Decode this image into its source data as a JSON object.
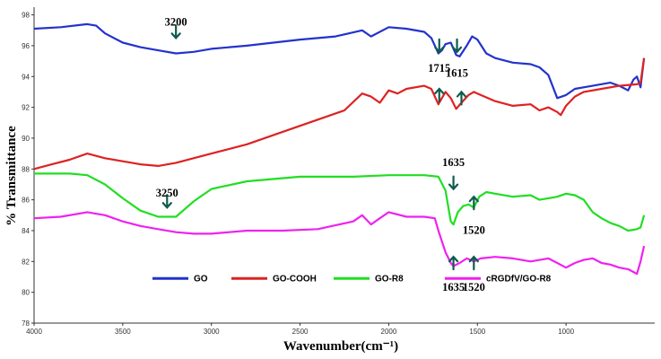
{
  "chart_data": {
    "type": "line",
    "title": "",
    "xlabel": "Wavenumber(cm⁻¹)",
    "ylabel": "% Transmittance",
    "xlim": [
      4000,
      500
    ],
    "ylim": [
      78,
      98.5
    ],
    "x_reversed": true,
    "grid": false,
    "legend_position": "bottom",
    "x_ticks": [
      4000,
      3500,
      3000,
      2500,
      2000,
      1500,
      1000
    ],
    "y_ticks": [
      78,
      80,
      82,
      84,
      86,
      88,
      90,
      92,
      94,
      96,
      98
    ],
    "series": [
      {
        "name": "GO",
        "color": "#2233cc",
        "points": [
          [
            4000,
            97.1
          ],
          [
            3850,
            97.2
          ],
          [
            3700,
            97.4
          ],
          [
            3650,
            97.3
          ],
          [
            3600,
            96.8
          ],
          [
            3500,
            96.2
          ],
          [
            3400,
            95.9
          ],
          [
            3300,
            95.7
          ],
          [
            3200,
            95.5
          ],
          [
            3100,
            95.6
          ],
          [
            3000,
            95.8
          ],
          [
            2800,
            96.0
          ],
          [
            2500,
            96.4
          ],
          [
            2300,
            96.6
          ],
          [
            2150,
            97.0
          ],
          [
            2100,
            96.6
          ],
          [
            2000,
            97.2
          ],
          [
            1900,
            97.1
          ],
          [
            1800,
            96.9
          ],
          [
            1760,
            96.5
          ],
          [
            1720,
            95.5
          ],
          [
            1700,
            95.7
          ],
          [
            1680,
            96.1
          ],
          [
            1650,
            96.2
          ],
          [
            1620,
            95.4
          ],
          [
            1600,
            95.3
          ],
          [
            1560,
            96.0
          ],
          [
            1530,
            96.6
          ],
          [
            1500,
            96.4
          ],
          [
            1450,
            95.5
          ],
          [
            1400,
            95.2
          ],
          [
            1300,
            94.9
          ],
          [
            1200,
            94.8
          ],
          [
            1150,
            94.6
          ],
          [
            1100,
            94.1
          ],
          [
            1050,
            92.6
          ],
          [
            1000,
            92.8
          ],
          [
            950,
            93.2
          ],
          [
            850,
            93.4
          ],
          [
            750,
            93.6
          ],
          [
            700,
            93.4
          ],
          [
            650,
            93.1
          ],
          [
            620,
            93.8
          ],
          [
            600,
            94.0
          ],
          [
            580,
            93.3
          ],
          [
            560,
            95.2
          ]
        ]
      },
      {
        "name": "GO-COOH",
        "color": "#dd2222",
        "points": [
          [
            4000,
            88.0
          ],
          [
            3900,
            88.3
          ],
          [
            3800,
            88.6
          ],
          [
            3700,
            89.0
          ],
          [
            3600,
            88.7
          ],
          [
            3500,
            88.5
          ],
          [
            3400,
            88.3
          ],
          [
            3300,
            88.2
          ],
          [
            3200,
            88.4
          ],
          [
            3000,
            89.0
          ],
          [
            2800,
            89.6
          ],
          [
            2600,
            90.4
          ],
          [
            2400,
            91.2
          ],
          [
            2250,
            91.8
          ],
          [
            2150,
            92.9
          ],
          [
            2100,
            92.7
          ],
          [
            2050,
            92.3
          ],
          [
            2000,
            93.1
          ],
          [
            1950,
            92.9
          ],
          [
            1900,
            93.2
          ],
          [
            1800,
            93.4
          ],
          [
            1760,
            93.2
          ],
          [
            1720,
            92.2
          ],
          [
            1700,
            92.6
          ],
          [
            1680,
            93.0
          ],
          [
            1650,
            92.6
          ],
          [
            1620,
            91.9
          ],
          [
            1590,
            92.3
          ],
          [
            1550,
            92.8
          ],
          [
            1520,
            93.0
          ],
          [
            1500,
            92.9
          ],
          [
            1400,
            92.4
          ],
          [
            1300,
            92.1
          ],
          [
            1200,
            92.2
          ],
          [
            1150,
            91.8
          ],
          [
            1100,
            92.0
          ],
          [
            1050,
            91.7
          ],
          [
            1030,
            91.5
          ],
          [
            1000,
            92.1
          ],
          [
            950,
            92.7
          ],
          [
            900,
            93.0
          ],
          [
            800,
            93.2
          ],
          [
            700,
            93.4
          ],
          [
            600,
            93.5
          ],
          [
            580,
            93.6
          ],
          [
            560,
            95.2
          ]
        ]
      },
      {
        "name": "GO-R8",
        "color": "#22dd22",
        "points": [
          [
            4000,
            87.7
          ],
          [
            3900,
            87.7
          ],
          [
            3800,
            87.7
          ],
          [
            3700,
            87.6
          ],
          [
            3600,
            87.0
          ],
          [
            3500,
            86.1
          ],
          [
            3400,
            85.3
          ],
          [
            3300,
            84.9
          ],
          [
            3200,
            84.9
          ],
          [
            3100,
            85.9
          ],
          [
            3000,
            86.7
          ],
          [
            2800,
            87.2
          ],
          [
            2500,
            87.5
          ],
          [
            2200,
            87.5
          ],
          [
            2000,
            87.6
          ],
          [
            1800,
            87.6
          ],
          [
            1720,
            87.5
          ],
          [
            1680,
            86.6
          ],
          [
            1650,
            84.6
          ],
          [
            1635,
            84.4
          ],
          [
            1610,
            85.2
          ],
          [
            1580,
            85.6
          ],
          [
            1550,
            85.7
          ],
          [
            1520,
            85.5
          ],
          [
            1490,
            86.2
          ],
          [
            1450,
            86.5
          ],
          [
            1400,
            86.4
          ],
          [
            1300,
            86.2
          ],
          [
            1200,
            86.3
          ],
          [
            1150,
            86.0
          ],
          [
            1100,
            86.1
          ],
          [
            1050,
            86.2
          ],
          [
            1000,
            86.4
          ],
          [
            950,
            86.3
          ],
          [
            900,
            86.0
          ],
          [
            850,
            85.2
          ],
          [
            800,
            84.8
          ],
          [
            750,
            84.5
          ],
          [
            700,
            84.3
          ],
          [
            650,
            84.0
          ],
          [
            600,
            84.1
          ],
          [
            580,
            84.2
          ],
          [
            560,
            85.0
          ]
        ]
      },
      {
        "name": "cRGDfV/GO-R8",
        "color": "#ee22ee",
        "points": [
          [
            4000,
            84.8
          ],
          [
            3850,
            84.9
          ],
          [
            3700,
            85.2
          ],
          [
            3600,
            85.0
          ],
          [
            3500,
            84.6
          ],
          [
            3400,
            84.3
          ],
          [
            3300,
            84.1
          ],
          [
            3200,
            83.9
          ],
          [
            3100,
            83.8
          ],
          [
            3000,
            83.8
          ],
          [
            2800,
            84.0
          ],
          [
            2600,
            84.0
          ],
          [
            2400,
            84.1
          ],
          [
            2200,
            84.6
          ],
          [
            2150,
            85.0
          ],
          [
            2100,
            84.4
          ],
          [
            2050,
            84.8
          ],
          [
            2000,
            85.2
          ],
          [
            1900,
            84.9
          ],
          [
            1800,
            84.9
          ],
          [
            1740,
            84.8
          ],
          [
            1720,
            84.0
          ],
          [
            1680,
            82.6
          ],
          [
            1650,
            81.9
          ],
          [
            1635,
            81.7
          ],
          [
            1600,
            81.9
          ],
          [
            1560,
            82.2
          ],
          [
            1520,
            82.0
          ],
          [
            1480,
            82.2
          ],
          [
            1400,
            82.3
          ],
          [
            1300,
            82.2
          ],
          [
            1200,
            82.0
          ],
          [
            1100,
            82.2
          ],
          [
            1050,
            81.9
          ],
          [
            1000,
            81.6
          ],
          [
            950,
            81.9
          ],
          [
            900,
            82.1
          ],
          [
            850,
            82.2
          ],
          [
            800,
            81.9
          ],
          [
            750,
            81.8
          ],
          [
            700,
            81.6
          ],
          [
            650,
            81.5
          ],
          [
            600,
            81.2
          ],
          [
            580,
            82.0
          ],
          [
            560,
            83.0
          ]
        ]
      }
    ],
    "annotations": [
      {
        "text": "3200",
        "x": 3200,
        "arrow_y": 96.5,
        "text_y": 97.3,
        "arrow": "down"
      },
      {
        "text": "1715",
        "x": 1715,
        "arrow_y": 95.6,
        "text_y": 94.3,
        "arrow": "down"
      },
      {
        "text": "1615",
        "x": 1615,
        "arrow_y": 95.6,
        "text_y": 94.0,
        "arrow": "down"
      },
      {
        "text": "1635",
        "x": 1635,
        "arrow_y": 86.7,
        "text_y": 88.2,
        "arrow": "down"
      },
      {
        "text": "3250",
        "x": 3250,
        "arrow_y": 85.5,
        "text_y": 86.2,
        "arrow": "down"
      },
      {
        "text": "1520",
        "x": 1520,
        "arrow_y": 86.2,
        "text_y": 83.8,
        "arrow": "up"
      },
      {
        "text": "1635",
        "x": 1635,
        "arrow_y": 82.3,
        "text_y": 80.1,
        "arrow": "up"
      },
      {
        "text": "1520",
        "x": 1520,
        "arrow_y": 82.3,
        "text_y": 80.1,
        "arrow": "up"
      },
      {
        "text": "",
        "x": 1715,
        "arrow_y": 93.2,
        "text_y": null,
        "arrow": "up"
      },
      {
        "text": "",
        "x": 1590,
        "arrow_y": 93.0,
        "text_y": null,
        "arrow": "up"
      }
    ],
    "arrow_color": "#0f5c4e"
  }
}
